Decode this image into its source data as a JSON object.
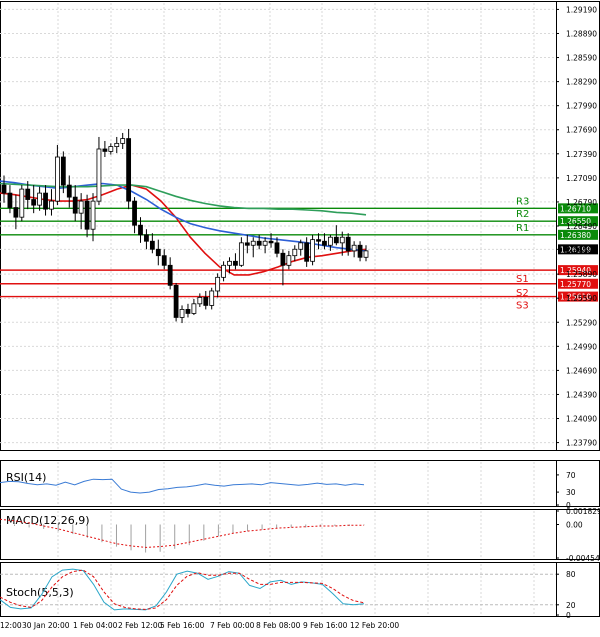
{
  "chart_data": [
    {
      "type": "candlestick",
      "panel": "price",
      "ylim": [
        1.2371,
        1.2927
      ],
      "y_ticks": [
        "1.29190",
        "1.28890",
        "1.28590",
        "1.28290",
        "1.27990",
        "1.27690",
        "1.27390",
        "1.27090",
        "1.26790",
        "1.26490",
        "1.26199",
        "1.25890",
        "1.25590",
        "1.25290",
        "1.24990",
        "1.24690",
        "1.24390",
        "1.24090",
        "1.23790"
      ],
      "x_ticks": [
        "12:00",
        "30 Jan 20:00",
        "1 Feb 04:00",
        "2 Feb 12:00",
        "5 Feb 16:00",
        "7 Feb 00:00",
        "8 Feb 08:00",
        "9 Feb 16:00",
        "12 Feb 20:00"
      ],
      "current_price": "1.26199",
      "levels": [
        {
          "name": "R3",
          "value": 1.2671,
          "label": "1.26710",
          "color": "#0a8a0a"
        },
        {
          "name": "R2",
          "value": 1.2655,
          "label": "1.26550",
          "color": "#0a8a0a"
        },
        {
          "name": "R1",
          "value": 1.2638,
          "label": "1.26380",
          "color": "#0a8a0a"
        },
        {
          "name": "S1",
          "value": 1.2594,
          "label": "1.25940",
          "color": "#e01010"
        },
        {
          "name": "S2",
          "value": 1.2577,
          "label": "1.25770",
          "color": "#e01010"
        },
        {
          "name": "S3",
          "value": 1.2561,
          "label": "1.25610",
          "color": "#e01010"
        }
      ],
      "candles": [
        [
          1.27,
          1.2712,
          1.2678,
          1.269
        ],
        [
          1.269,
          1.27,
          1.2665,
          1.2672
        ],
        [
          1.2672,
          1.2688,
          1.2645,
          1.266
        ],
        [
          1.266,
          1.27,
          1.2655,
          1.2695
        ],
        [
          1.2695,
          1.2705,
          1.267,
          1.2682
        ],
        [
          1.2682,
          1.27,
          1.2665,
          1.2675
        ],
        [
          1.2675,
          1.2698,
          1.2668,
          1.269
        ],
        [
          1.269,
          1.27,
          1.2662,
          1.267
        ],
        [
          1.267,
          1.2695,
          1.2662,
          1.268
        ],
        [
          1.268,
          1.275,
          1.2675,
          1.2735
        ],
        [
          1.2735,
          1.2742,
          1.269,
          1.27
        ],
        [
          1.27,
          1.2712,
          1.2672,
          1.2685
        ],
        [
          1.2685,
          1.27,
          1.2655,
          1.2665
        ],
        [
          1.2665,
          1.269,
          1.2645,
          1.268
        ],
        [
          1.268,
          1.2688,
          1.2635,
          1.2645
        ],
        [
          1.2645,
          1.269,
          1.263,
          1.268
        ],
        [
          1.268,
          1.276,
          1.2675,
          1.2745
        ],
        [
          1.2745,
          1.2755,
          1.2735,
          1.2742
        ],
        [
          1.2742,
          1.2752,
          1.2738,
          1.2748
        ],
        [
          1.2748,
          1.276,
          1.274,
          1.2752
        ],
        [
          1.2752,
          1.2765,
          1.2745,
          1.2758
        ],
        [
          1.2758,
          1.277,
          1.267,
          1.268
        ],
        [
          1.268,
          1.2685,
          1.264,
          1.265
        ],
        [
          1.265,
          1.266,
          1.2628,
          1.2638
        ],
        [
          1.2638,
          1.2645,
          1.262,
          1.263
        ],
        [
          1.263,
          1.264,
          1.2615,
          1.262
        ],
        [
          1.262,
          1.2632,
          1.26,
          1.2612
        ],
        [
          1.2612,
          1.262,
          1.2595,
          1.26
        ],
        [
          1.26,
          1.261,
          1.257,
          1.2575
        ],
        [
          1.2575,
          1.2578,
          1.253,
          1.2535
        ],
        [
          1.2535,
          1.255,
          1.2528,
          1.2545
        ],
        [
          1.2545,
          1.2552,
          1.2535,
          1.254
        ],
        [
          1.254,
          1.2558,
          1.2538,
          1.2552
        ],
        [
          1.2552,
          1.2565,
          1.2548,
          1.256
        ],
        [
          1.256,
          1.2568,
          1.2545,
          1.255
        ],
        [
          1.255,
          1.2572,
          1.2545,
          1.2568
        ],
        [
          1.2568,
          1.259,
          1.256,
          1.2585
        ],
        [
          1.2585,
          1.2605,
          1.258,
          1.26
        ],
        [
          1.26,
          1.261,
          1.259,
          1.2605
        ],
        [
          1.2605,
          1.2615,
          1.2595,
          1.26
        ],
        [
          1.26,
          1.2635,
          1.2598,
          1.2628
        ],
        [
          1.2628,
          1.2638,
          1.2615,
          1.2625
        ],
        [
          1.2625,
          1.2635,
          1.261,
          1.263
        ],
        [
          1.263,
          1.2638,
          1.262,
          1.2625
        ],
        [
          1.2625,
          1.2635,
          1.2615,
          1.263
        ],
        [
          1.263,
          1.264,
          1.2622,
          1.2628
        ],
        [
          1.2628,
          1.2635,
          1.261,
          1.2615
        ],
        [
          1.2615,
          1.262,
          1.2575,
          1.26
        ],
        [
          1.26,
          1.2618,
          1.2595,
          1.2612
        ],
        [
          1.2612,
          1.2625,
          1.2605,
          1.262
        ],
        [
          1.262,
          1.2632,
          1.2612,
          1.2628
        ],
        [
          1.2628,
          1.2635,
          1.2598,
          1.2605
        ],
        [
          1.2605,
          1.2638,
          1.26,
          1.2632
        ],
        [
          1.2632,
          1.264,
          1.262,
          1.263
        ],
        [
          1.263,
          1.264,
          1.262,
          1.2625
        ],
        [
          1.2625,
          1.2638,
          1.2618,
          1.2635
        ],
        [
          1.2635,
          1.265,
          1.2625,
          1.2628
        ],
        [
          1.2628,
          1.2642,
          1.2612,
          1.2635
        ],
        [
          1.2635,
          1.264,
          1.2612,
          1.2618
        ],
        [
          1.2618,
          1.263,
          1.261,
          1.2625
        ],
        [
          1.2625,
          1.263,
          1.2605,
          1.261
        ],
        [
          1.261,
          1.2625,
          1.2605,
          1.2618
        ]
      ],
      "series": [
        {
          "name": "Fast MA",
          "color": "#e01010",
          "values": [
            1.269,
            1.2688,
            1.2685,
            1.2682,
            1.268,
            1.268,
            1.2682,
            1.2688,
            1.2695,
            1.27,
            1.2695,
            1.268,
            1.266,
            1.2635,
            1.2615,
            1.2598,
            1.2588,
            1.2588,
            1.2592,
            1.2598,
            1.2605,
            1.261,
            1.2612,
            1.2615,
            1.2618,
            1.262
          ]
        },
        {
          "name": "Medium MA",
          "color": "#2d5fd6",
          "values": [
            1.2705,
            1.2703,
            1.27,
            1.2698,
            1.2696,
            1.2698,
            1.27,
            1.2702,
            1.27,
            1.2692,
            1.2682,
            1.267,
            1.266,
            1.2652,
            1.2647,
            1.2643,
            1.264,
            1.2637,
            1.2634,
            1.2632,
            1.263,
            1.2628,
            1.2625,
            1.2622,
            1.262,
            1.2618
          ]
        },
        {
          "name": "Slow MA",
          "color": "#2e9e5a",
          "values": [
            1.2702,
            1.2701,
            1.27,
            1.2699,
            1.2698,
            1.2698,
            1.2698,
            1.2699,
            1.27,
            1.27,
            1.2698,
            1.2692,
            1.2686,
            1.2681,
            1.2677,
            1.2674,
            1.2672,
            1.2671,
            1.2671,
            1.267,
            1.267,
            1.2669,
            1.2668,
            1.2666,
            1.2665,
            1.2663
          ]
        }
      ]
    },
    {
      "type": "line",
      "panel": "rsi",
      "title": "RSI(14)",
      "ylim": [
        0,
        100
      ],
      "y_ticks": [
        "70",
        "30",
        "0"
      ],
      "series": [
        {
          "name": "RSI",
          "color": "#3a7bd5",
          "values": [
            52,
            55,
            54,
            50,
            47,
            49,
            46,
            53,
            47,
            55,
            60,
            59,
            60,
            37,
            30,
            28,
            30,
            36,
            38,
            41,
            42,
            45,
            49,
            46,
            44,
            47,
            48,
            49,
            47,
            52,
            50,
            48,
            46,
            48,
            51,
            48,
            49,
            46,
            49,
            47
          ]
        }
      ]
    },
    {
      "type": "bar",
      "panel": "macd",
      "title": "MACD(12,26,9)",
      "ylim": [
        -0.004542,
        0.001829
      ],
      "y_ticks": [
        "0.001829",
        "0.00",
        "-0.004542"
      ],
      "series": [
        {
          "name": "MACD",
          "color": "#a0a0a0",
          "values": [
            0.0001,
            -0.0002,
            -0.0004,
            -0.0006,
            -0.0009,
            -0.0013,
            -0.0018,
            -0.0024,
            -0.003,
            -0.0035,
            -0.0038,
            -0.0037,
            -0.0033,
            -0.0028,
            -0.0022,
            -0.0016,
            -0.0012,
            -0.0009,
            -0.0007,
            -0.0005,
            -0.0004,
            -0.0004,
            -0.0003,
            -0.0002,
            -0.0002,
            -0.0001
          ]
        },
        {
          "name": "Signal",
          "color": "#e01010",
          "values": [
            0.0007,
            0.0005,
            0.0002,
            -0.0002,
            -0.0006,
            -0.0011,
            -0.0016,
            -0.0021,
            -0.0026,
            -0.0029,
            -0.0031,
            -0.003,
            -0.0028,
            -0.0024,
            -0.002,
            -0.0016,
            -0.0012,
            -0.0009,
            -0.0007,
            -0.0005,
            -0.0004,
            -0.0003,
            -0.0002,
            -0.0002,
            -0.0001,
            -0.0001
          ]
        }
      ]
    },
    {
      "type": "line",
      "panel": "stoch",
      "title": "Stoch(5,5,3)",
      "ylim": [
        0,
        100
      ],
      "y_ticks": [
        "80",
        "20",
        "0"
      ],
      "series": [
        {
          "name": "%K",
          "color": "#2aa6c9",
          "values": [
            30,
            15,
            12,
            14,
            40,
            75,
            88,
            90,
            87,
            60,
            25,
            10,
            12,
            11,
            10,
            18,
            45,
            80,
            86,
            82,
            70,
            76,
            85,
            82,
            58,
            52,
            65,
            68,
            60,
            65,
            63,
            60,
            42,
            22,
            20,
            22
          ]
        },
        {
          "name": "%D",
          "color": "#e01010",
          "values": [
            35,
            25,
            18,
            15,
            28,
            55,
            75,
            85,
            88,
            75,
            45,
            22,
            15,
            12,
            11,
            14,
            30,
            58,
            76,
            83,
            78,
            78,
            82,
            82,
            70,
            60,
            60,
            64,
            64,
            64,
            63,
            62,
            52,
            38,
            28,
            24
          ]
        }
      ]
    }
  ]
}
